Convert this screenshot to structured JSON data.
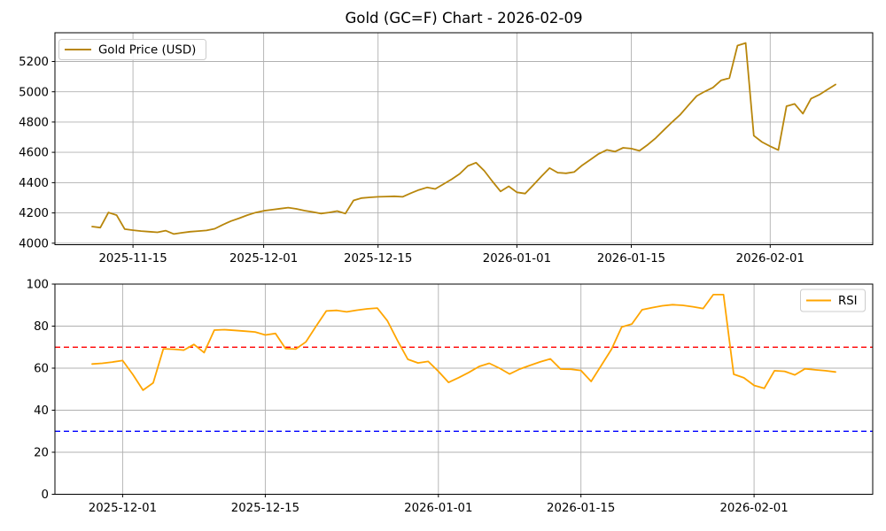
{
  "figure": {
    "title": "Gold (GC=F) Chart - 2026-02-09",
    "background_color": "#FFFFFF",
    "grid_color": "#B0B0B0"
  },
  "chart_data": [
    {
      "id": "price",
      "type": "line",
      "title": "Gold (GC=F) Chart - 2026-02-09",
      "grid": true,
      "xlabel": "",
      "ylabel": "",
      "ylim": [
        3990,
        5390
      ],
      "y_ticks": [
        4000,
        4200,
        4400,
        4600,
        4800,
        5000,
        5200
      ],
      "x_ticks": [
        "2025-11-15",
        "2025-12-01",
        "2025-12-15",
        "2026-01-01",
        "2026-01-15",
        "2026-02-01"
      ],
      "legend": {
        "position": "upper-left",
        "entries": [
          {
            "label": "Gold Price (USD)",
            "color": "#B8860B"
          }
        ]
      },
      "series": [
        {
          "name": "Gold Price (USD)",
          "id": "gold-price-line",
          "color": "#B8860B",
          "dates": [
            "2025-11-10",
            "2025-11-11",
            "2025-11-12",
            "2025-11-13",
            "2025-11-14",
            "2025-11-15",
            "2025-11-16",
            "2025-11-17",
            "2025-11-18",
            "2025-11-19",
            "2025-11-20",
            "2025-11-21",
            "2025-11-22",
            "2025-11-23",
            "2025-11-24",
            "2025-11-25",
            "2025-11-26",
            "2025-11-27",
            "2025-11-28",
            "2025-11-29",
            "2025-11-30",
            "2025-12-01",
            "2025-12-02",
            "2025-12-03",
            "2025-12-04",
            "2025-12-05",
            "2025-12-06",
            "2025-12-07",
            "2025-12-08",
            "2025-12-09",
            "2025-12-10",
            "2025-12-11",
            "2025-12-12",
            "2025-12-13",
            "2025-12-14",
            "2025-12-15",
            "2025-12-16",
            "2025-12-17",
            "2025-12-18",
            "2025-12-19",
            "2025-12-20",
            "2025-12-21",
            "2025-12-22",
            "2025-12-23",
            "2025-12-24",
            "2025-12-25",
            "2025-12-26",
            "2025-12-27",
            "2025-12-28",
            "2025-12-29",
            "2025-12-30",
            "2025-12-31",
            "2026-01-01",
            "2026-01-02",
            "2026-01-03",
            "2026-01-04",
            "2026-01-05",
            "2026-01-06",
            "2026-01-07",
            "2026-01-08",
            "2026-01-09",
            "2026-01-10",
            "2026-01-11",
            "2026-01-12",
            "2026-01-13",
            "2026-01-14",
            "2026-01-15",
            "2026-01-16",
            "2026-01-17",
            "2026-01-18",
            "2026-01-19",
            "2026-01-20",
            "2026-01-21",
            "2026-01-22",
            "2026-01-23",
            "2026-01-24",
            "2026-01-25",
            "2026-01-26",
            "2026-01-27",
            "2026-01-28",
            "2026-01-29",
            "2026-01-30",
            "2026-01-31",
            "2026-02-01",
            "2026-02-02",
            "2026-02-03",
            "2026-02-04",
            "2026-02-05",
            "2026-02-06",
            "2026-02-07",
            "2026-02-08",
            "2026-02-09"
          ],
          "values": [
            4110,
            4103,
            4203,
            4185,
            4093,
            4086,
            4080,
            4076,
            4072,
            4083,
            4061,
            4069,
            4076,
            4080,
            4084,
            4095,
            4122,
            4146,
            4165,
            4185,
            4202,
            4214,
            4221,
            4228,
            4235,
            4227,
            4215,
            4206,
            4196,
            4203,
            4212,
            4196,
            4282,
            4298,
            4303,
            4306,
            4308,
            4310,
            4306,
            4330,
            4352,
            4368,
            4358,
            4390,
            4422,
            4458,
            4510,
            4532,
            4478,
            4408,
            4342,
            4376,
            4336,
            4328,
            4384,
            4442,
            4496,
            4466,
            4462,
            4470,
            4515,
            4552,
            4590,
            4616,
            4605,
            4630,
            4625,
            4610,
            4650,
            4695,
            4748,
            4800,
            4850,
            4912,
            4972,
            5002,
            5028,
            5076,
            5090,
            5305,
            5322,
            4710,
            4668,
            4640,
            4615,
            4905,
            4920,
            4856,
            4955,
            4980,
            5015,
            5048
          ]
        }
      ]
    },
    {
      "id": "rsi",
      "type": "line",
      "title": "",
      "grid": true,
      "xlabel": "",
      "ylabel": "",
      "ylim": [
        0,
        100
      ],
      "y_ticks": [
        0,
        20,
        40,
        60,
        80,
        100
      ],
      "x_ticks": [
        "2025-12-01",
        "2025-12-15",
        "2026-01-01",
        "2026-01-15",
        "2026-02-01"
      ],
      "legend": {
        "position": "upper-right",
        "entries": [
          {
            "label": "RSI",
            "color": "#FFA500"
          }
        ]
      },
      "hlines": [
        {
          "value": 70,
          "color": "#FF0000",
          "style": "dashed",
          "name": "rsi-overbought-line"
        },
        {
          "value": 30,
          "color": "#0000FF",
          "style": "dashed",
          "name": "rsi-oversold-line"
        }
      ],
      "series": [
        {
          "name": "RSI",
          "id": "rsi-line",
          "color": "#FFA500",
          "dates": [
            "2025-11-28",
            "2025-11-29",
            "2025-11-30",
            "2025-12-01",
            "2025-12-02",
            "2025-12-03",
            "2025-12-04",
            "2025-12-05",
            "2025-12-06",
            "2025-12-07",
            "2025-12-08",
            "2025-12-09",
            "2025-12-10",
            "2025-12-11",
            "2025-12-12",
            "2025-12-13",
            "2025-12-14",
            "2025-12-15",
            "2025-12-16",
            "2025-12-17",
            "2025-12-18",
            "2025-12-19",
            "2025-12-20",
            "2025-12-21",
            "2025-12-22",
            "2025-12-23",
            "2025-12-24",
            "2025-12-25",
            "2025-12-26",
            "2025-12-27",
            "2025-12-28",
            "2025-12-29",
            "2025-12-30",
            "2025-12-31",
            "2026-01-01",
            "2026-01-02",
            "2026-01-03",
            "2026-01-04",
            "2026-01-05",
            "2026-01-06",
            "2026-01-07",
            "2026-01-08",
            "2026-01-09",
            "2026-01-10",
            "2026-01-11",
            "2026-01-12",
            "2026-01-13",
            "2026-01-14",
            "2026-01-15",
            "2026-01-16",
            "2026-01-17",
            "2026-01-18",
            "2026-01-19",
            "2026-01-20",
            "2026-01-21",
            "2026-01-22",
            "2026-01-23",
            "2026-01-24",
            "2026-01-25",
            "2026-01-26",
            "2026-01-27",
            "2026-01-28",
            "2026-01-29",
            "2026-01-30",
            "2026-01-31",
            "2026-02-01",
            "2026-02-02",
            "2026-02-03",
            "2026-02-04",
            "2026-02-05",
            "2026-02-06",
            "2026-02-07",
            "2026-02-08",
            "2026-02-09"
          ],
          "values": [
            62.0,
            62.3,
            62.9,
            63.6,
            57.0,
            49.5,
            53.0,
            69.2,
            69.0,
            68.6,
            71.3,
            67.4,
            78.1,
            78.3,
            78.0,
            77.6,
            77.2,
            75.8,
            76.5,
            69.3,
            69.1,
            72.5,
            80.0,
            87.2,
            87.5,
            86.8,
            87.6,
            88.2,
            88.6,
            82.5,
            73.0,
            64.2,
            62.5,
            63.2,
            58.5,
            53.2,
            55.5,
            58.0,
            60.8,
            62.3,
            60.0,
            57.2,
            59.6,
            61.3,
            63.0,
            64.4,
            59.6,
            59.5,
            58.9,
            53.7,
            61.3,
            69.0,
            79.6,
            81.0,
            87.8,
            88.8,
            89.7,
            90.2,
            89.9,
            89.2,
            88.4,
            95.0,
            95.0,
            57.1,
            55.4,
            51.8,
            50.4,
            58.8,
            58.5,
            56.8,
            59.7,
            59.2,
            58.8,
            58.2
          ]
        }
      ]
    }
  ]
}
